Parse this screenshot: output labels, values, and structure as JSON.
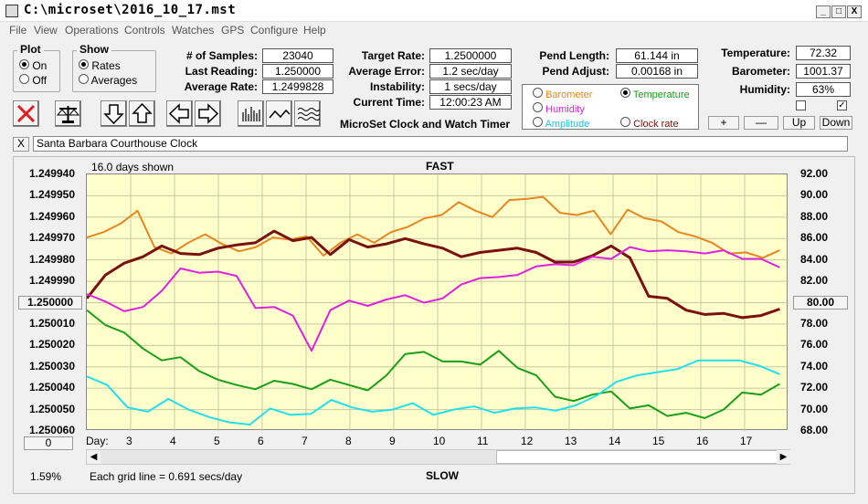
{
  "window": {
    "title": "C:\\microset\\2016_10_17.mst",
    "min": "_",
    "max": "□",
    "close": "X"
  },
  "menu": [
    "File",
    "View",
    "Operations",
    "Controls",
    "Watches",
    "GPS",
    "Configure",
    "Help"
  ],
  "plot_group": {
    "title": "Plot",
    "on": "On",
    "off": "Off",
    "selected": "On"
  },
  "show_group": {
    "title": "Show",
    "rates": "Rates",
    "averages": "Averages",
    "selected": "Rates"
  },
  "stats": {
    "samples_label": "# of Samples:",
    "samples": "23040",
    "last_label": "Last Reading:",
    "last": "1.250000",
    "avgrate_label": "Average Rate:",
    "avgrate": "1.2499828",
    "target_label": "Target Rate:",
    "target": "1.2500000",
    "avgerr_label": "Average Error:",
    "avgerr": "1.2 sec/day",
    "instab_label": "Instability:",
    "instab": "1 secs/day",
    "time_label": "Current Time:",
    "time": "12:00:23 AM",
    "pendlen_label": "Pend Length:",
    "pendlen": "61.144 in",
    "pendadj_label": "Pend Adjust:",
    "pendadj": "0.00168 in",
    "temp_label": "Temperature:",
    "temp": "72.32",
    "baro_label": "Barometer:",
    "baro": "1001.37",
    "hum_label": "Humidity:",
    "hum": "63%"
  },
  "app_caption": "MicroSet Clock and Watch Timer",
  "sensor_options": [
    {
      "label": "Barometer",
      "color": "#e8861f",
      "selected": false
    },
    {
      "label": "Temperature",
      "color": "#18a018",
      "selected": true
    },
    {
      "label": "Humidity",
      "color": "#e020e0",
      "selected": false
    },
    {
      "label": "Clock rate",
      "color": "#7a1010",
      "selected": false
    },
    {
      "label": "Amplitude",
      "color": "#20c0e0",
      "selected": false
    }
  ],
  "right_buttons": {
    "plus": "+",
    "minus": "—",
    "up": "Up",
    "down": "Down"
  },
  "clock_name": "Santa Barbara Courthouse Clock",
  "close_clock": "X",
  "chart_data": {
    "type": "line",
    "top_label": "FAST",
    "bottom_label": "SLOW",
    "days_shown": "16.0 days shown",
    "grid_note": "Each grid line = 0.691 secs/day",
    "percent": "1.59%",
    "left_center": "1.250000",
    "right_center": "80.00",
    "left_bottom_button": "0",
    "xlabel": "Day:",
    "x_ticks": [
      "3",
      "4",
      "5",
      "6",
      "7",
      "8",
      "9",
      "10",
      "11",
      "12",
      "13",
      "14",
      "15",
      "16",
      "17"
    ],
    "left_ticks": [
      "1.249940",
      "1.249950",
      "1.249960",
      "1.249970",
      "1.249980",
      "1.249990",
      "1.250000",
      "1.250010",
      "1.250020",
      "1.250030",
      "1.250040",
      "1.250050",
      "1.250060"
    ],
    "right_ticks": [
      "92.00",
      "90.00",
      "88.00",
      "86.00",
      "84.00",
      "82.00",
      "80.00",
      "78.00",
      "76.00",
      "74.00",
      "72.00",
      "70.00",
      "68.00"
    ],
    "x_range": [
      2,
      18
    ],
    "series": [
      {
        "color": "#e8861f",
        "values": [
          86.1,
          86.6,
          87.4,
          88.6,
          85.2,
          84.6,
          85.6,
          86.4,
          85.5,
          84.8,
          85.2,
          86.1,
          85.9,
          86.2,
          84.4,
          85.6,
          86.4,
          85.6,
          86.6,
          87.1,
          87.9,
          88.2,
          89.4,
          88.6,
          88.0,
          89.6,
          89.7,
          89.9,
          88.4,
          88.2,
          88.6,
          86.4,
          88.7,
          87.9,
          87.6,
          86.6,
          86.2,
          85.6,
          84.6,
          84.7,
          84.2,
          84.9
        ]
      },
      {
        "color": "#7a1010",
        "values": [
          80.4,
          82.6,
          83.7,
          84.3,
          85.3,
          84.6,
          84.5,
          85.1,
          85.4,
          85.6,
          86.7,
          85.8,
          86.1,
          84.5,
          85.9,
          85.2,
          85.5,
          86.0,
          85.5,
          85.1,
          84.3,
          84.7,
          84.9,
          85.1,
          84.7,
          83.8,
          83.8,
          84.4,
          85.3,
          84.2,
          80.6,
          80.4,
          79.3,
          78.9,
          79.0,
          78.6,
          78.8,
          79.4
        ]
      },
      {
        "color": "#e020e0",
        "values": [
          80.8,
          80.1,
          79.2,
          79.6,
          81.1,
          83.2,
          82.8,
          82.9,
          82.5,
          79.5,
          79.6,
          78.8,
          75.5,
          79.3,
          80.2,
          79.7,
          80.3,
          80.7,
          80.0,
          80.4,
          81.7,
          82.3,
          82.4,
          82.6,
          83.4,
          83.6,
          83.5,
          84.3,
          84.1,
          85.2,
          84.8,
          84.9,
          84.8,
          84.6,
          84.9,
          84.1,
          84.1,
          83.3
        ]
      },
      {
        "color": "#18a018",
        "values": [
          79.3,
          77.9,
          77.2,
          75.7,
          74.6,
          74.9,
          73.6,
          72.8,
          72.3,
          71.9,
          72.7,
          72.4,
          71.9,
          72.8,
          72.3,
          71.8,
          73.2,
          75.2,
          75.4,
          74.5,
          74.5,
          74.2,
          75.5,
          73.9,
          73.2,
          71.2,
          70.8,
          71.4,
          71.7,
          70.1,
          70.4,
          69.4,
          69.7,
          69.2,
          70.0,
          71.6,
          71.4,
          72.4
        ]
      },
      {
        "color": "#20e0f0",
        "values": [
          73.1,
          72.3,
          70.2,
          69.8,
          71.0,
          70.0,
          69.3,
          68.8,
          68.6,
          70.1,
          69.5,
          69.6,
          70.9,
          70.2,
          69.8,
          70.0,
          70.6,
          69.5,
          70.0,
          70.3,
          69.7,
          70.1,
          70.2,
          69.9,
          70.4,
          71.3,
          72.6,
          73.2,
          73.5,
          73.8,
          74.6,
          74.6,
          74.6,
          74.1,
          73.3
        ]
      }
    ]
  }
}
